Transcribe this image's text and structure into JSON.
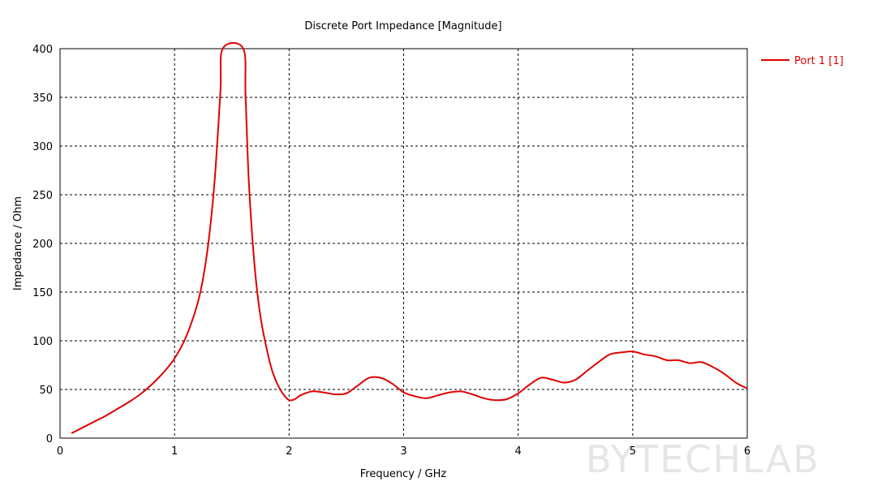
{
  "chart_data": {
    "type": "line",
    "title": "Discrete Port Impedance [Magnitude]",
    "xlabel": "Frequency / GHz",
    "ylabel": "Impedance / Ohm",
    "xlim": [
      0,
      6
    ],
    "ylim": [
      0,
      400
    ],
    "xticks": [
      "0",
      "1",
      "2",
      "3",
      "4",
      "5",
      "6"
    ],
    "yticks": [
      "0",
      "50",
      "100",
      "150",
      "200",
      "250",
      "300",
      "350",
      "400"
    ],
    "grid": true,
    "legend_position": "right, outside plot",
    "series": [
      {
        "name": "Port 1 [1]",
        "color": "#e00000",
        "x": [
          0.1,
          0.2,
          0.3,
          0.4,
          0.5,
          0.6,
          0.7,
          0.8,
          0.9,
          1.0,
          1.1,
          1.2,
          1.25,
          1.3,
          1.35,
          1.4,
          1.42,
          1.6,
          1.62,
          1.65,
          1.7,
          1.75,
          1.8,
          1.85,
          1.9,
          1.95,
          2.0,
          2.05,
          2.1,
          2.2,
          2.3,
          2.4,
          2.5,
          2.6,
          2.7,
          2.8,
          2.9,
          3.0,
          3.1,
          3.2,
          3.3,
          3.4,
          3.5,
          3.6,
          3.7,
          3.8,
          3.9,
          4.0,
          4.1,
          4.2,
          4.3,
          4.4,
          4.5,
          4.6,
          4.7,
          4.8,
          4.9,
          5.0,
          5.1,
          5.2,
          5.3,
          5.4,
          5.5,
          5.6,
          5.7,
          5.8,
          5.9,
          6.0
        ],
        "y": [
          5,
          11,
          17,
          23,
          30,
          37,
          45,
          55,
          67,
          82,
          104,
          138,
          165,
          205,
          265,
          355,
          400,
          400,
          350,
          260,
          175,
          125,
          94,
          70,
          55,
          45,
          39,
          40,
          44,
          48,
          47,
          45,
          46,
          54,
          62,
          62,
          56,
          47,
          43,
          41,
          44,
          47,
          48,
          45,
          41,
          39,
          40,
          46,
          55,
          62,
          60,
          57,
          60,
          69,
          78,
          86,
          88,
          89,
          86,
          84,
          80,
          80,
          77,
          78,
          73,
          66,
          57,
          51
        ]
      }
    ]
  }
}
